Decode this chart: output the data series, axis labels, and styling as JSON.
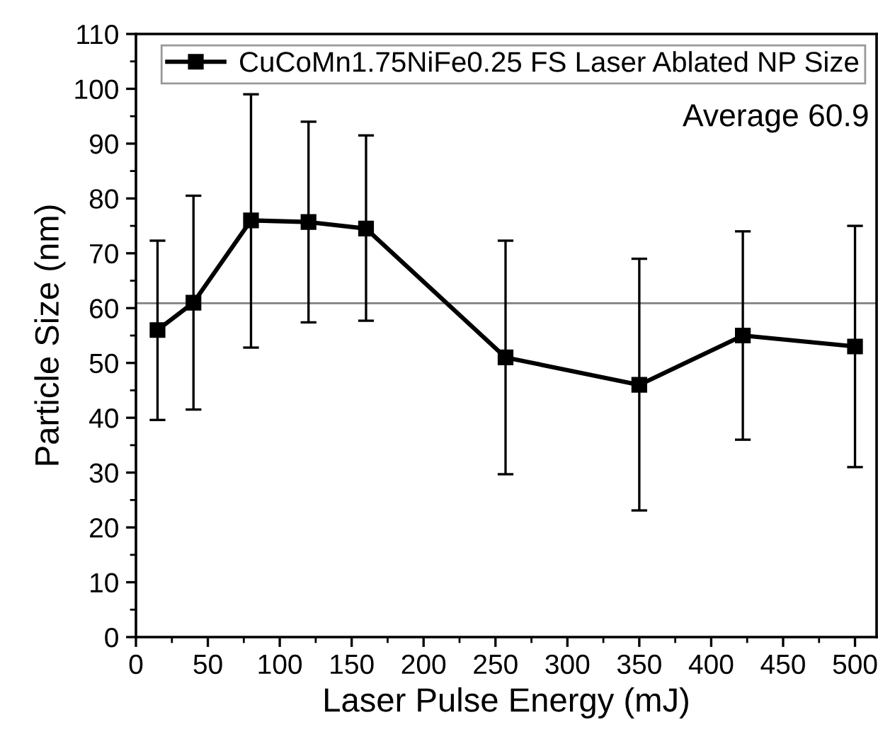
{
  "chart_data": {
    "type": "line",
    "xlabel": "Laser Pulse Energy (mJ)",
    "ylabel": "Particle Size (nm)",
    "x": [
      15,
      40,
      80,
      120,
      160,
      257,
      350,
      422,
      500
    ],
    "series": [
      {
        "name": "CuCoMn1.75NiFe0.25 FS Laser Ablated NP Size",
        "color": "#000000",
        "values": [
          56,
          61,
          76,
          75.7,
          74.5,
          51,
          46,
          55,
          53
        ],
        "errors": [
          [
            39.6,
            72.3
          ],
          [
            41.5,
            80.5
          ],
          [
            52.8,
            99
          ],
          [
            57.4,
            94
          ],
          [
            57.7,
            91.5
          ],
          [
            29.7,
            72.3
          ],
          [
            23.1,
            69
          ],
          [
            36,
            74
          ],
          [
            31,
            75
          ]
        ]
      }
    ],
    "xlim": [
      0,
      515
    ],
    "xticks": [
      0,
      50,
      100,
      150,
      200,
      250,
      300,
      350,
      400,
      450,
      500
    ],
    "ylim": [
      0,
      110
    ],
    "yticks": [
      0,
      10,
      20,
      30,
      40,
      50,
      60,
      70,
      80,
      90,
      100,
      110
    ],
    "ref_lines": [
      {
        "axis": "y",
        "value": 60.9,
        "color": "#808080"
      }
    ],
    "annotations": [
      "Average 60.9"
    ],
    "marker": "square",
    "line_style": "solid",
    "legend": "top right",
    "grid": false
  }
}
